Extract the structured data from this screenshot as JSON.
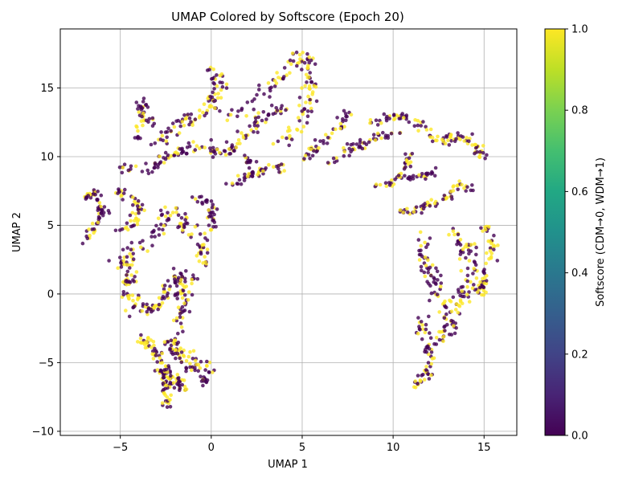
{
  "chart_data": {
    "type": "scatter",
    "title": "UMAP Colored by Softscore (Epoch 20)",
    "xlabel": "UMAP 1",
    "ylabel": "UMAP 2",
    "xlim": [
      -8.3,
      16.8
    ],
    "ylim": [
      -10.3,
      19.3
    ],
    "xticks": [
      -5,
      0,
      5,
      10,
      15
    ],
    "yticks": [
      -10,
      -5,
      0,
      5,
      10,
      15
    ],
    "grid": true,
    "colormap": "viridis",
    "colors": {
      "low": "#440154",
      "high": "#fde725"
    },
    "colorbar": {
      "label": "Softscore (CDM→0, WDM→1)",
      "range": [
        0.0,
        1.0
      ],
      "ticks": [
        "0.0",
        "0.2",
        "0.4",
        "0.6",
        "0.8",
        "1.0"
      ]
    },
    "point_alpha": 0.8,
    "clusters": [
      {
        "polyline": [
          [
            -7.0,
            7.0
          ],
          [
            -6.4,
            7.5
          ],
          [
            -6.0,
            6.0
          ],
          [
            -6.6,
            4.5
          ],
          [
            -7.0,
            3.7
          ]
        ],
        "points": 60,
        "spread": 0.3,
        "yellow": 0.3
      },
      {
        "polyline": [
          [
            -5.2,
            4.7
          ],
          [
            -4.3,
            5.0
          ],
          [
            -4.0,
            6.5
          ],
          [
            -5.2,
            7.6
          ]
        ],
        "points": 50,
        "spread": 0.35,
        "yellow": 0.4
      },
      {
        "polyline": [
          [
            -5.0,
            9.3
          ],
          [
            -4.0,
            9.0
          ],
          [
            -3.0,
            9.5
          ],
          [
            -2.0,
            10.2
          ],
          [
            -1.0,
            10.8
          ],
          [
            0.0,
            10.2
          ],
          [
            1.0,
            10.5
          ],
          [
            2.0,
            9.8
          ],
          [
            3.0,
            9.0
          ],
          [
            4.0,
            9.2
          ]
        ],
        "points": 110,
        "spread": 0.5,
        "yellow": 0.35
      },
      {
        "polyline": [
          [
            -4.2,
            11.0
          ],
          [
            -3.8,
            12.5
          ],
          [
            -4.0,
            14.0
          ],
          [
            -3.0,
            12.0
          ]
        ],
        "points": 40,
        "spread": 0.4,
        "yellow": 0.3
      },
      {
        "polyline": [
          [
            -3.0,
            11.0
          ],
          [
            -2.0,
            12.0
          ],
          [
            -1.0,
            12.8
          ],
          [
            0.0,
            13.5
          ],
          [
            0.5,
            15.0
          ],
          [
            0.0,
            16.2
          ]
        ],
        "points": 90,
        "spread": 0.55,
        "yellow": 0.4
      },
      {
        "polyline": [
          [
            1.0,
            13.0
          ],
          [
            2.0,
            14.0
          ],
          [
            3.0,
            15.0
          ],
          [
            4.0,
            16.0
          ],
          [
            5.0,
            17.5
          ],
          [
            5.5,
            15.0
          ],
          [
            5.0,
            12.5
          ],
          [
            4.0,
            11.0
          ]
        ],
        "points": 120,
        "spread": 0.55,
        "yellow": 0.45
      },
      {
        "polyline": [
          [
            1.0,
            10.5
          ],
          [
            2.0,
            12.0
          ],
          [
            3.0,
            13.0
          ],
          [
            4.0,
            13.5
          ]
        ],
        "points": 50,
        "spread": 0.45,
        "yellow": 0.35
      },
      {
        "polyline": [
          [
            1.0,
            8.0
          ],
          [
            2.0,
            8.5
          ],
          [
            3.0,
            9.0
          ]
        ],
        "points": 30,
        "spread": 0.3,
        "yellow": 0.3
      },
      {
        "polyline": [
          [
            5.0,
            9.8
          ],
          [
            6.0,
            11.0
          ],
          [
            7.0,
            12.0
          ],
          [
            7.5,
            13.5
          ]
        ],
        "points": 45,
        "spread": 0.4,
        "yellow": 0.3
      },
      {
        "polyline": [
          [
            6.5,
            9.5
          ],
          [
            7.5,
            10.5
          ],
          [
            8.5,
            11.0
          ],
          [
            9.5,
            11.5
          ],
          [
            10.5,
            11.8
          ]
        ],
        "points": 50,
        "spread": 0.35,
        "yellow": 0.4
      },
      {
        "polyline": [
          [
            9.0,
            12.5
          ],
          [
            10.0,
            13.0
          ],
          [
            11.0,
            12.8
          ],
          [
            12.0,
            12.0
          ]
        ],
        "points": 40,
        "spread": 0.35,
        "yellow": 0.3
      },
      {
        "polyline": [
          [
            12.0,
            11.5
          ],
          [
            13.0,
            11.2
          ],
          [
            14.0,
            11.5
          ],
          [
            15.0,
            10.0
          ]
        ],
        "points": 60,
        "spread": 0.45,
        "yellow": 0.55
      },
      {
        "polyline": [
          [
            11.0,
            10.5
          ],
          [
            10.5,
            9.0
          ],
          [
            10.0,
            8.0
          ],
          [
            9.0,
            8.0
          ]
        ],
        "points": 35,
        "spread": 0.3,
        "yellow": 0.3
      },
      {
        "polyline": [
          [
            10.5,
            8.5
          ],
          [
            11.5,
            8.5
          ],
          [
            12.5,
            9.0
          ]
        ],
        "points": 25,
        "spread": 0.3,
        "yellow": 0.3
      },
      {
        "polyline": [
          [
            10.0,
            6.0
          ],
          [
            11.0,
            6.0
          ],
          [
            12.0,
            6.5
          ],
          [
            13.0,
            7.0
          ],
          [
            13.5,
            8.0
          ],
          [
            14.5,
            7.5
          ]
        ],
        "points": 60,
        "spread": 0.35,
        "yellow": 0.4
      },
      {
        "polyline": [
          [
            11.5,
            4.5
          ],
          [
            11.5,
            3.0
          ],
          [
            12.0,
            1.5
          ],
          [
            12.5,
            0.0
          ],
          [
            13.0,
            -1.0
          ]
        ],
        "points": 60,
        "spread": 0.55,
        "yellow": 0.4
      },
      {
        "polyline": [
          [
            13.0,
            4.5
          ],
          [
            14.0,
            3.5
          ],
          [
            14.5,
            2.0
          ],
          [
            14.0,
            0.5
          ],
          [
            13.5,
            -1.0
          ],
          [
            13.0,
            -2.5
          ],
          [
            12.5,
            -3.5
          ]
        ],
        "points": 110,
        "spread": 0.65,
        "yellow": 0.5
      },
      {
        "polyline": [
          [
            15.0,
            5.0
          ],
          [
            15.5,
            3.5
          ],
          [
            15.0,
            1.5
          ],
          [
            14.8,
            0.0
          ]
        ],
        "points": 60,
        "spread": 0.4,
        "yellow": 0.7
      },
      {
        "polyline": [
          [
            11.5,
            -1.5
          ],
          [
            11.8,
            -3.0
          ],
          [
            12.0,
            -4.5
          ],
          [
            11.8,
            -6.0
          ],
          [
            11.0,
            -6.8
          ]
        ],
        "points": 60,
        "spread": 0.35,
        "yellow": 0.4
      },
      {
        "polyline": [
          [
            -5.0,
            2.0
          ],
          [
            -4.0,
            3.5
          ],
          [
            -3.0,
            4.5
          ],
          [
            -2.5,
            6.0
          ],
          [
            -1.5,
            5.5
          ],
          [
            -1.5,
            4.0
          ]
        ],
        "points": 80,
        "spread": 0.55,
        "yellow": 0.45
      },
      {
        "polyline": [
          [
            -4.5,
            2.0
          ],
          [
            -4.5,
            0.5
          ],
          [
            -4.2,
            -1.0
          ],
          [
            -3.0,
            -1.0
          ],
          [
            -2.5,
            0.0
          ],
          [
            -2.0,
            1.0
          ],
          [
            -1.0,
            1.5
          ]
        ],
        "points": 110,
        "spread": 0.55,
        "yellow": 0.45
      },
      {
        "polyline": [
          [
            -1.0,
            7.0
          ],
          [
            0.0,
            6.5
          ],
          [
            0.0,
            5.0
          ],
          [
            -0.5,
            3.5
          ],
          [
            -0.5,
            2.0
          ]
        ],
        "points": 60,
        "spread": 0.4,
        "yellow": 0.4
      },
      {
        "polyline": [
          [
            -2.0,
            2.0
          ],
          [
            -1.5,
            0.5
          ],
          [
            -1.5,
            -1.0
          ],
          [
            -2.0,
            -2.5
          ],
          [
            -2.0,
            -4.0
          ],
          [
            -1.0,
            -4.8
          ],
          [
            0.0,
            -5.8
          ]
        ],
        "points": 90,
        "spread": 0.45,
        "yellow": 0.45
      },
      {
        "polyline": [
          [
            -4.2,
            -3.0
          ],
          [
            -3.5,
            -3.5
          ],
          [
            -3.0,
            -4.5
          ],
          [
            -2.5,
            -5.5
          ],
          [
            -2.5,
            -7.0
          ],
          [
            -2.5,
            -8.5
          ]
        ],
        "points": 90,
        "spread": 0.4,
        "yellow": 0.55
      },
      {
        "polyline": [
          [
            -3.0,
            -5.5
          ],
          [
            -2.0,
            -6.0
          ],
          [
            -1.5,
            -7.0
          ]
        ],
        "points": 40,
        "spread": 0.35,
        "yellow": 0.45
      },
      {
        "polyline": [
          [
            -2.5,
            -3.5
          ],
          [
            -2.0,
            -4.5
          ],
          [
            -1.0,
            -5.5
          ],
          [
            -0.5,
            -6.0
          ],
          [
            -0.3,
            -6.5
          ]
        ],
        "points": 45,
        "spread": 0.35,
        "yellow": 0.35
      }
    ]
  }
}
